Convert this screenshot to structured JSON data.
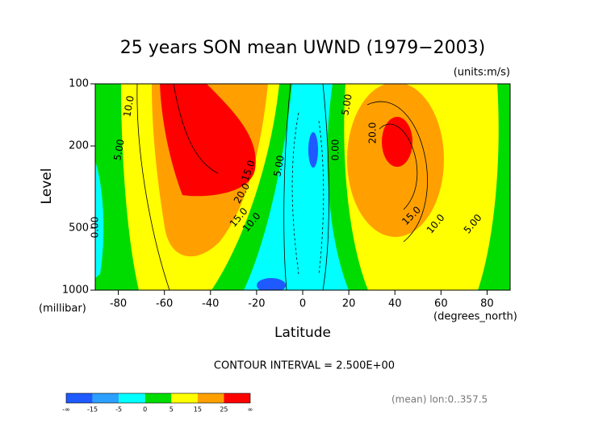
{
  "chart_data": {
    "type": "contour",
    "title": "25 years SON mean UWND (1979−2003)",
    "units": "(units:m/s)",
    "x_label": "Latitude",
    "y_label": "Level",
    "x_unit": "(degrees_north)",
    "y_unit": "(millibar)",
    "xlim": [
      -90,
      90
    ],
    "xticks": [
      -80,
      -60,
      -40,
      -20,
      0,
      20,
      40,
      60,
      80
    ],
    "ylim": [
      1000,
      100
    ],
    "log_y": true,
    "yticks": [
      100,
      200,
      500,
      1000
    ],
    "contour_interval": "CONTOUR INTERVAL = 2.500E+00",
    "footer": "(mean) lon:0..357.5",
    "colorbar": {
      "low_label": "-∞",
      "high_label": "∞",
      "bounds": [
        -15,
        -5,
        0,
        5,
        15,
        25
      ],
      "colors": [
        "#1e5aff",
        "#2ca0ff",
        "#00ffff",
        "#00dc00",
        "#ffff00",
        "#ffa000",
        "#ff0000"
      ]
    },
    "contour_labels": [
      {
        "value": 10,
        "label": "10.0"
      },
      {
        "value": 5,
        "label": "5.00"
      },
      {
        "value": 0,
        "label": "0.00"
      },
      {
        "value": 15,
        "label": "15.0"
      },
      {
        "value": 20,
        "label": "20.0"
      },
      {
        "value": 15,
        "label": "15.0"
      },
      {
        "value": 10,
        "label": "10.0"
      },
      {
        "value": 5,
        "label": "5.00"
      },
      {
        "value": 0,
        "label": "0.00"
      },
      {
        "value": 5,
        "label": "5.00"
      },
      {
        "value": 20,
        "label": "20.0"
      },
      {
        "value": 15,
        "label": "15.0"
      },
      {
        "value": 10,
        "label": "10.0"
      },
      {
        "value": 5,
        "label": "5.00"
      }
    ]
  }
}
